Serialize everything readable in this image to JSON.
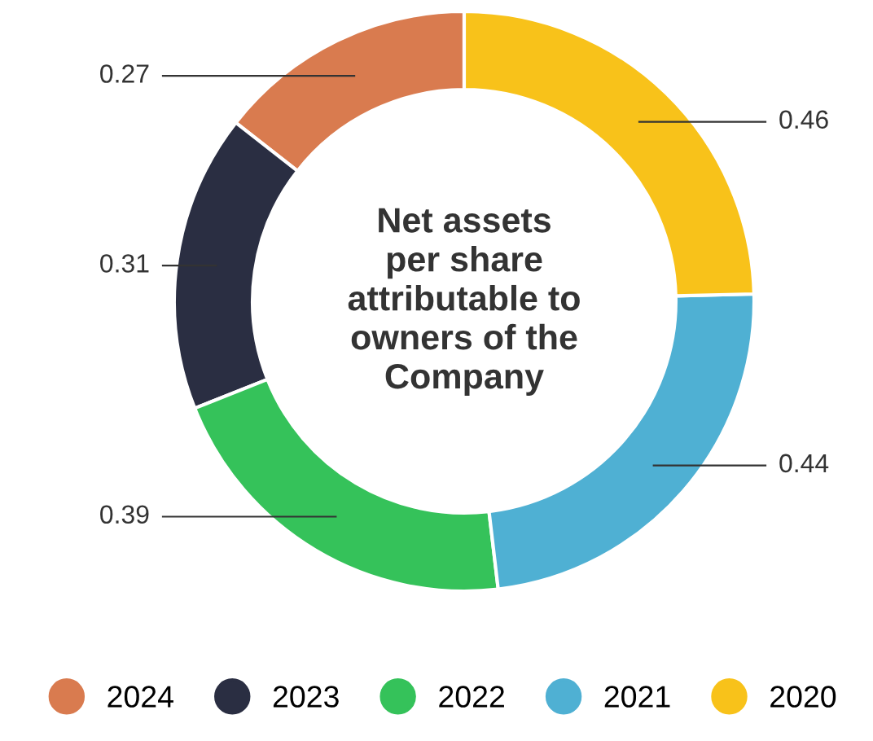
{
  "chart_data": {
    "type": "donut",
    "title": "Net assets\nper share\nattributable to\nowners of the\nCompany",
    "categories": [
      "2024",
      "2023",
      "2022",
      "2021",
      "2020"
    ],
    "values": [
      0.27,
      0.31,
      0.39,
      0.44,
      0.46
    ],
    "colors": [
      "#d97b4f",
      "#2a2e42",
      "#35c25a",
      "#4fb0d3",
      "#f8c21a"
    ],
    "data_labels": true,
    "legend": "bottom"
  }
}
